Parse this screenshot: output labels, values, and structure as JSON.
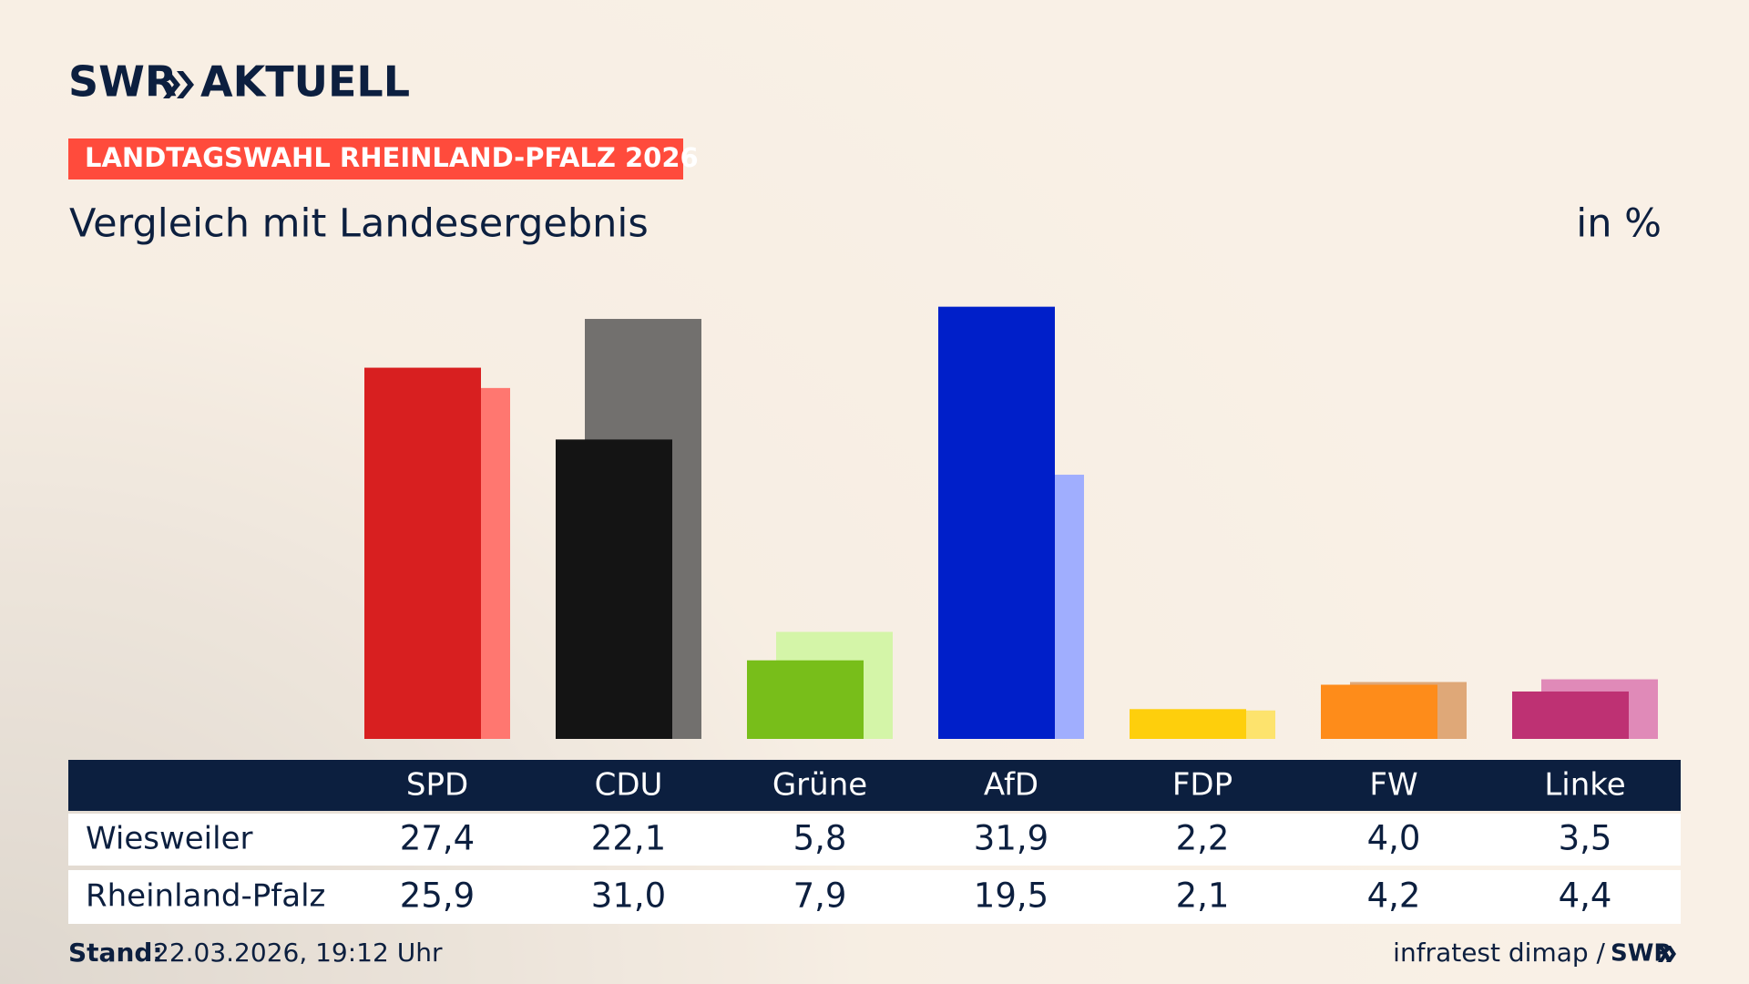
{
  "chart_data": {
    "type": "bar",
    "logo": {
      "brand": "SWR",
      "product": "AKTUELL"
    },
    "badge": "LANDTAGSWAHL RHEINLAND-PFALZ 2026",
    "title": "Vergleich mit Landesergebnis",
    "unit": "in %",
    "categories": [
      "SPD",
      "CDU",
      "Grüne",
      "AfD",
      "FDP",
      "FW",
      "Linke"
    ],
    "series": [
      {
        "name": "Wiesweiler",
        "values": [
          27.4,
          22.1,
          5.8,
          31.9,
          2.2,
          4.0,
          3.5
        ],
        "value_labels": [
          "27,4",
          "22,1",
          "5,8",
          "31,9",
          "2,2",
          "4,0",
          "3,5"
        ],
        "colors": [
          "#d81f20",
          "#141414",
          "#78be1a",
          "#001fc9",
          "#fecf0c",
          "#fe8c1a",
          "#be3173"
        ]
      },
      {
        "name": "Rheinland-Pfalz",
        "values": [
          25.9,
          31.0,
          7.9,
          19.5,
          2.1,
          4.2,
          4.4
        ],
        "value_labels": [
          "25,9",
          "31,0",
          "7,9",
          "19,5",
          "2,1",
          "4,2",
          "4,4"
        ],
        "colors": [
          "#ff7770",
          "#72706e",
          "#d4f5a8",
          "#a0aefe",
          "#fde36d",
          "#dfa878",
          "#e08ab8"
        ]
      }
    ],
    "footer": {
      "label": "Stand:",
      "date": "22.03.2026, 19:12 Uhr",
      "source": "infratest dimap /",
      "brand": "SWR"
    }
  }
}
